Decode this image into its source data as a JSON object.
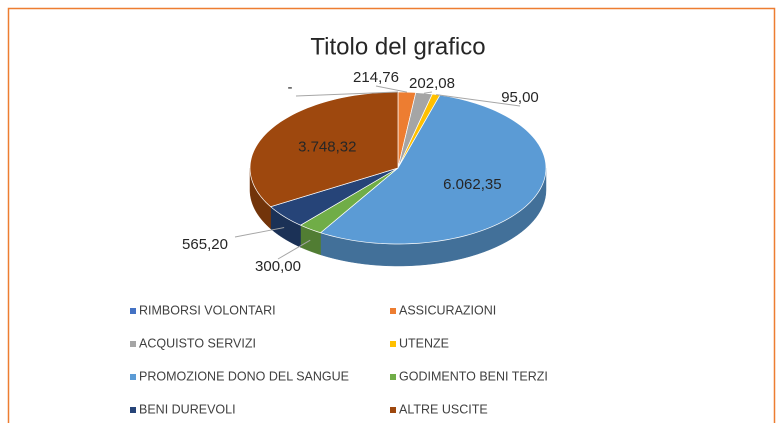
{
  "chart_data": {
    "type": "pie",
    "title": "Titolo del grafico",
    "categories": [
      "RIMBORSI VOLONTARI",
      "ASSICURAZIONI",
      "ACQUISTO SERVIZI",
      "UTENZE",
      "PROMOZIONE DONO DEL SANGUE",
      "GODIMENTO BENI TERZI",
      "BENI DUREVOLI",
      "ALTRE USCITE"
    ],
    "values": [
      0,
      214.76,
      202.08,
      95.0,
      6062.35,
      300.0,
      565.2,
      3748.32
    ],
    "value_labels": [
      "-",
      "214,76",
      "202,08",
      "95,00",
      "6.062,35",
      "300,00",
      "565,20",
      "3.748,32"
    ],
    "colors": [
      "#4472c4",
      "#ed7d31",
      "#a5a5a5",
      "#ffc000",
      "#5b9bd5",
      "#70ad47",
      "#264478",
      "#9e480e"
    ],
    "legend": "bottom"
  }
}
